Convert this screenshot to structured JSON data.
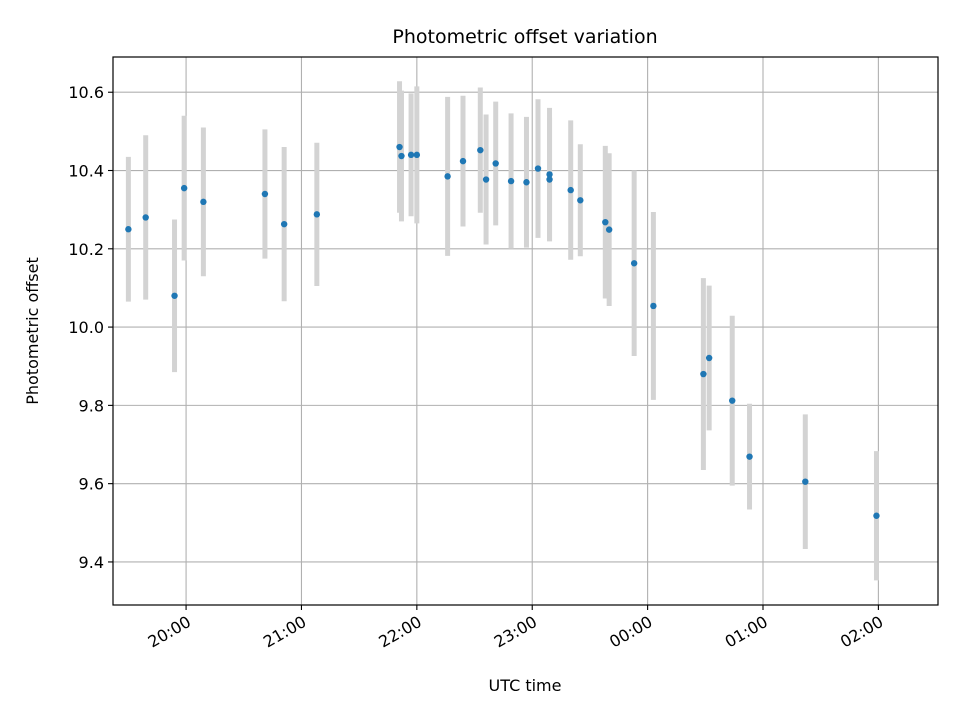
{
  "chart_data": {
    "type": "scatter",
    "title": "Photometric offset variation",
    "xlabel": "UTC time",
    "ylabel": "Photometric offset",
    "grid": true,
    "x_ticks": [
      "20:00",
      "21:00",
      "22:00",
      "23:00",
      "00:00",
      "01:00",
      "02:00"
    ],
    "x_tick_values": [
      "20:00",
      "21:00",
      "22:00",
      "23:00",
      "00:00",
      "01:00",
      "02:00"
    ],
    "xlim": [
      "19:22",
      "02:31"
    ],
    "y_ticks": [
      "9.4",
      "9.6",
      "9.8",
      "10.0",
      "10.2",
      "10.4",
      "10.6"
    ],
    "y_tick_values": [
      9.4,
      9.6,
      9.8,
      10.0,
      10.2,
      10.4,
      10.6
    ],
    "ylim": [
      9.29,
      10.69
    ],
    "point_color": "#1f77b4",
    "errorbar_color": "#d3d3d3",
    "points": [
      {
        "x": "19:30",
        "y": 10.25,
        "err": 0.185
      },
      {
        "x": "19:39",
        "y": 10.28,
        "err": 0.21
      },
      {
        "x": "19:54",
        "y": 10.08,
        "err": 0.195
      },
      {
        "x": "19:59",
        "y": 10.355,
        "err": 0.185
      },
      {
        "x": "20:09",
        "y": 10.32,
        "err": 0.19
      },
      {
        "x": "20:41",
        "y": 10.34,
        "err": 0.165
      },
      {
        "x": "20:51",
        "y": 10.263,
        "err": 0.197
      },
      {
        "x": "21:08",
        "y": 10.288,
        "err": 0.183
      },
      {
        "x": "21:51",
        "y": 10.46,
        "err": 0.168
      },
      {
        "x": "21:52",
        "y": 10.437,
        "err": 0.167
      },
      {
        "x": "21:57",
        "y": 10.44,
        "err": 0.157
      },
      {
        "x": "22:00",
        "y": 10.44,
        "err": 0.175
      },
      {
        "x": "22:16",
        "y": 10.385,
        "err": 0.203
      },
      {
        "x": "22:24",
        "y": 10.424,
        "err": 0.167
      },
      {
        "x": "22:33",
        "y": 10.452,
        "err": 0.16
      },
      {
        "x": "22:36",
        "y": 10.377,
        "err": 0.166
      },
      {
        "x": "22:41",
        "y": 10.418,
        "err": 0.158
      },
      {
        "x": "22:49",
        "y": 10.373,
        "err": 0.173
      },
      {
        "x": "22:57",
        "y": 10.37,
        "err": 0.167
      },
      {
        "x": "23:03",
        "y": 10.405,
        "err": 0.177
      },
      {
        "x": "23:09",
        "y": 10.377,
        "err": 0.158
      },
      {
        "x": "23:09",
        "y": 10.39,
        "err": 0.17
      },
      {
        "x": "23:20",
        "y": 10.35,
        "err": 0.178
      },
      {
        "x": "23:25",
        "y": 10.324,
        "err": 0.143
      },
      {
        "x": "23:38",
        "y": 10.268,
        "err": 0.195
      },
      {
        "x": "23:40",
        "y": 10.249,
        "err": 0.195
      },
      {
        "x": "23:53",
        "y": 10.163,
        "err": 0.237
      },
      {
        "x": "00:03",
        "y": 10.054,
        "err": 0.24
      },
      {
        "x": "00:29",
        "y": 9.88,
        "err": 0.245
      },
      {
        "x": "00:32",
        "y": 9.921,
        "err": 0.185
      },
      {
        "x": "00:44",
        "y": 9.812,
        "err": 0.217
      },
      {
        "x": "00:53",
        "y": 9.669,
        "err": 0.135
      },
      {
        "x": "01:22",
        "y": 9.605,
        "err": 0.172
      },
      {
        "x": "01:59",
        "y": 9.518,
        "err": 0.165
      }
    ]
  }
}
